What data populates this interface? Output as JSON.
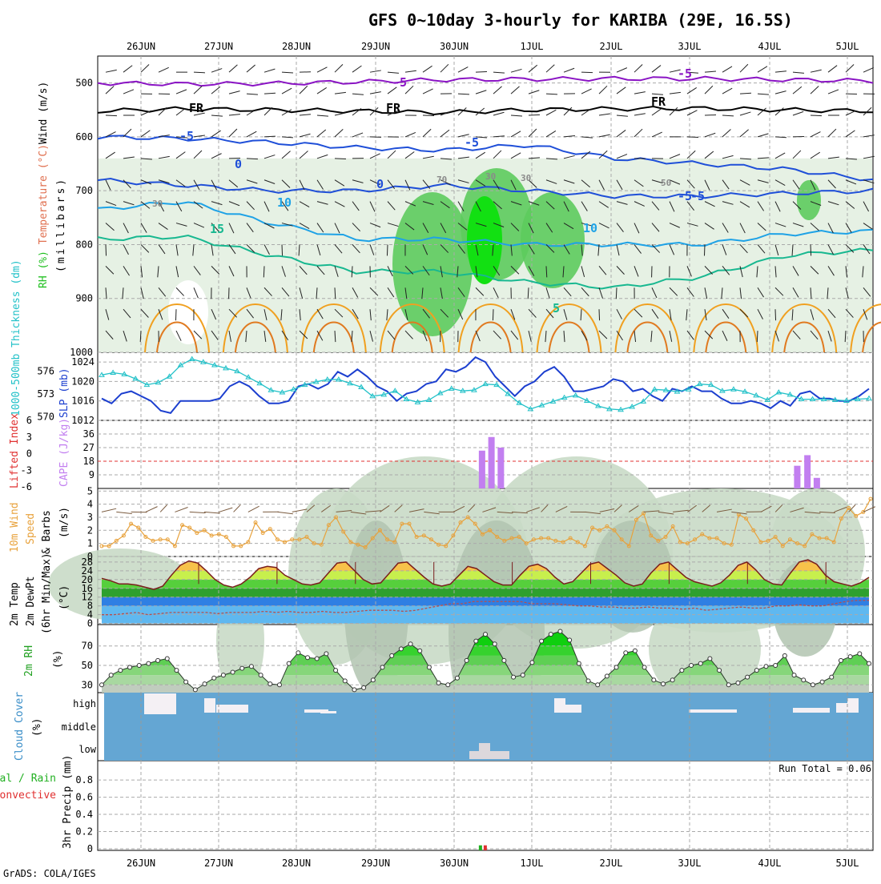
{
  "title": "GFS 0~10day 3-hourly for KARIBA (29E, 16.5S)",
  "credit": "GrADS: COLA/IGES",
  "colors": {
    "rh_light": "#e6f1e4",
    "rh_mid": "#c9dac6",
    "rh_dark": "#b2c4b0",
    "rh_green": "#5dcb5d",
    "rh_bright": "#12e012",
    "temp_purple": "#8a14c4",
    "temp_black": "#000000",
    "temp_blue": "#1f4fd8",
    "temp_lightblue": "#1ea2e6",
    "temp_teal": "#18b890",
    "temp_orange": "#f0a020",
    "temp_darkorange": "#e07a20",
    "slp": "#1c3fcf",
    "thickness": "#22c1c8",
    "cape": "#c27ff0",
    "li_zero": "#e03030",
    "wind_line": "#e8a23c",
    "barb": "#7a5a3e",
    "cloud_bg": "#64a6d3",
    "cloud_fill": "#f4f0f4",
    "precip_total": "#20b020",
    "precip_conv": "#e03030"
  },
  "chart_data": [
    {
      "panel": "upper_air",
      "type": "heatmap",
      "x": [
        "26JUN",
        "27JUN",
        "28JUN",
        "29JUN",
        "30JUN",
        "1JUL",
        "2JUL",
        "3JUL",
        "4JUL",
        "5JUL"
      ],
      "yticks": [
        500,
        600,
        700,
        800,
        900,
        1000
      ],
      "ylabel_wind": "Wind (m/s)",
      "ylabel_temp": "Temperature (°C)",
      "ylabel_rh": "RH (%)",
      "ylabel_units": "(millibars)",
      "contour_labels": [
        "-5",
        "-5",
        "FR",
        "FR",
        "FR",
        "-5",
        "-5",
        "-5",
        "0",
        "0",
        "-5",
        "10",
        "10",
        "15",
        "5",
        "30",
        "30",
        "30",
        "50",
        "70"
      ],
      "contours": [
        {
          "name": "-5 (500mb)",
          "values": [
            500,
            502,
            501,
            498,
            494,
            493,
            492,
            492,
            494,
            496
          ]
        },
        {
          "name": "FR",
          "values": [
            552,
            548,
            550,
            552,
            555,
            550,
            548,
            547,
            550,
            552
          ]
        },
        {
          "name": "-5 (600mb)",
          "values": [
            600,
            603,
            610,
            620,
            625,
            615,
            640,
            650,
            660,
            680
          ]
        },
        {
          "name": "0",
          "values": [
            680,
            690,
            700,
            700,
            690,
            700,
            710,
            710,
            705,
            700
          ]
        },
        {
          "name": "10",
          "values": [
            735,
            720,
            760,
            790,
            790,
            800,
            800,
            800,
            780,
            775
          ]
        },
        {
          "name": "15",
          "values": [
            790,
            785,
            820,
            850,
            850,
            870,
            880,
            860,
            820,
            810
          ]
        }
      ],
      "ylim": [
        1000,
        450
      ]
    },
    {
      "panel": "slp_thickness",
      "type": "line",
      "ylabel_left": "1000-500mb Thickness (dm)",
      "ylabel_right": "SLP (mb)",
      "yticks_left": [
        570,
        573,
        576
      ],
      "yticks_right": [
        1012,
        1016,
        1020,
        1024
      ],
      "series": [
        {
          "name": "SLP",
          "axis": "right",
          "values": [
            1016.5,
            1015.5,
            1017.5,
            1018,
            1017,
            1016,
            1014,
            1013.5,
            1016,
            1016,
            1016,
            1016,
            1016.5,
            1019,
            1020,
            1019,
            1017,
            1015.5,
            1015.5,
            1016,
            1019,
            1019.5,
            1018.5,
            1019.5,
            1022,
            1021,
            1022.5,
            1021,
            1019,
            1018,
            1016,
            1017.5,
            1018,
            1019.5,
            1020,
            1022.5,
            1022,
            1023,
            1025,
            1024,
            1021,
            1019,
            1017,
            1019,
            1020,
            1022,
            1023,
            1021,
            1018,
            1018,
            1018.5,
            1019,
            1020.5,
            1020,
            1018,
            1018.5,
            1017,
            1016,
            1018.5,
            1018,
            1019,
            1018,
            1018,
            1016.5,
            1015.5,
            1015.5,
            1016,
            1015.5,
            1014.5,
            1016,
            1015,
            1017.5,
            1018,
            1016.5,
            1016.5,
            1016,
            1016,
            1017,
            1018.5
          ]
        },
        {
          "name": "Thickness",
          "axis": "left",
          "values": [
            575.5,
            575.8,
            575.6,
            575,
            574.2,
            574.5,
            575.3,
            576.8,
            577.6,
            577.2,
            576.8,
            576.4,
            576,
            575.2,
            574.4,
            573.5,
            573.2,
            573.6,
            574.2,
            574.6,
            574.9,
            574.9,
            574.4,
            573.9,
            572.7,
            572.9,
            573.4,
            572.3,
            571.9,
            572.2,
            573.1,
            573.7,
            573.4,
            573.5,
            574.3,
            574.2,
            573,
            571.8,
            571,
            571.5,
            572,
            572.5,
            572.8,
            572.1,
            571.4,
            571,
            570.9,
            571.3,
            572,
            573.6,
            573.5,
            573.3,
            573.6,
            574.3,
            574.2,
            573.4,
            573.6,
            573.3,
            572.8,
            572.2,
            573.2,
            572.9,
            572.3,
            572.3,
            572.3,
            572.2,
            572.1,
            572.3,
            572.4
          ]
        }
      ]
    },
    {
      "panel": "cape_li",
      "type": "bar",
      "ylabel_left": "Lifted Index",
      "ylabel_right": "CAPE (J/kg)",
      "yticks_left": [
        -6,
        -3,
        0,
        3,
        6
      ],
      "yticks_right": [
        9,
        18,
        27,
        36
      ],
      "series": [
        {
          "name": "CAPE",
          "bars": [
            {
              "x": 4.35,
              "value": 25
            },
            {
              "x": 4.47,
              "value": 34
            },
            {
              "x": 4.59,
              "value": 27
            },
            {
              "x": 8.37,
              "value": 15
            },
            {
              "x": 8.5,
              "value": 22
            },
            {
              "x": 8.62,
              "value": 7
            }
          ]
        }
      ],
      "reference_line": 0
    },
    {
      "panel": "wind10m",
      "type": "line",
      "ylabel": "10m Wind Speed & Barbs (m/s)",
      "yticks": [
        0,
        1,
        2,
        3,
        4,
        5
      ],
      "series": [
        {
          "name": "10m Wind Speed",
          "values": [
            0.8,
            0.8,
            1.2,
            1.6,
            2.5,
            2.2,
            1.5,
            1.2,
            1.3,
            1.3,
            0.8,
            2.4,
            2.2,
            1.8,
            2.0,
            1.6,
            1.7,
            1.5,
            0.8,
            0.8,
            1.1,
            2.6,
            1.8,
            2.1,
            1.3,
            1.1,
            1.3,
            1.3,
            1.5,
            1.0,
            0.9,
            2.4,
            3.0,
            1.9,
            1.1,
            0.9,
            0.7,
            1.4,
            2.0,
            1.3,
            1.1,
            2.5,
            2.5,
            1.5,
            1.6,
            1.3,
            0.9,
            0.8,
            1.6,
            2.6,
            3.0,
            2.5,
            1.7,
            2.0,
            1.5,
            1.2,
            1.4,
            1.5,
            1.0,
            1.3,
            1.4,
            1.4,
            1.2,
            1.1,
            1.4,
            1.1,
            0.8,
            2.2,
            2.0,
            2.3,
            2.0,
            1.3,
            0.8,
            2.8,
            3.3,
            1.6,
            1.2,
            1.5,
            2.3,
            1.1,
            1.0,
            1.3,
            1.7,
            1.4,
            1.4,
            1.0,
            0.9,
            3.2,
            2.9,
            2.0,
            1.1,
            1.2,
            1.5,
            0.8,
            1.3,
            1.0,
            0.8,
            1.7,
            1.4,
            1.4,
            1.1,
            2.9,
            3.7,
            3.1,
            3.4,
            4.4
          ]
        }
      ]
    },
    {
      "panel": "temp2m",
      "type": "area",
      "ylabel": "2m Temp 2m DewPt (6hr Min/Max) (°C)",
      "yticks": [
        0,
        4,
        8,
        12,
        16,
        20,
        24,
        28
      ],
      "series": [
        {
          "name": "2m Temp",
          "values": [
            20.5,
            19.5,
            18,
            18,
            17.5,
            16.5,
            15.5,
            17,
            22,
            26.5,
            28.5,
            27.5,
            24,
            20,
            17.5,
            16.5,
            18,
            21,
            25,
            26,
            25.5,
            22,
            20,
            18,
            17.5,
            18.5,
            23,
            27.5,
            28,
            24,
            20,
            18,
            18.5,
            23,
            27.5,
            28,
            24.5,
            21,
            18,
            17,
            18,
            22,
            26,
            25,
            22,
            19,
            17.5,
            17.5,
            22,
            26,
            27,
            25,
            21,
            18,
            19,
            23,
            27,
            28,
            25,
            22,
            18.5,
            17,
            18,
            23,
            27,
            28,
            24.5,
            21,
            19,
            18,
            17,
            18.5,
            22,
            26.5,
            28,
            24.5,
            20,
            18,
            17.5,
            23,
            28,
            29,
            27,
            22,
            19,
            18,
            17,
            18.5,
            21
          ]
        },
        {
          "name": "2m DewPt",
          "values": [
            4,
            4,
            4.5,
            5,
            4,
            4.5,
            5,
            5,
            5,
            5,
            4.5,
            5,
            5,
            5,
            5.5,
            5,
            5.5,
            5,
            5,
            5.5,
            5,
            5,
            5.5,
            6,
            6,
            6,
            5.5,
            6,
            7,
            8,
            9,
            9,
            10,
            10,
            10,
            10,
            10,
            9,
            9,
            9,
            8.5,
            8,
            8,
            7.5,
            7.5,
            7,
            7,
            7.5,
            7,
            7,
            6.5,
            7,
            6,
            6.5,
            7,
            7.5,
            7,
            7,
            8,
            8,
            8.5,
            8,
            8,
            9,
            10,
            10.5,
            10.5
          ]
        }
      ]
    },
    {
      "panel": "rh2m",
      "type": "area",
      "ylabel": "2m RH (%)",
      "yticks": [
        30,
        50,
        70
      ],
      "series": [
        {
          "name": "2m RH",
          "values": [
            30,
            40,
            45,
            48,
            50,
            52,
            55,
            57,
            45,
            33,
            25,
            31,
            37,
            40,
            43,
            47,
            49,
            40,
            31,
            30,
            52,
            63,
            58,
            57,
            62,
            45,
            34,
            25,
            27,
            35,
            48,
            60,
            67,
            72,
            65,
            48,
            32,
            30,
            37,
            55,
            75,
            82,
            72,
            55,
            38,
            40,
            53,
            75,
            82,
            85,
            76,
            52,
            34,
            30,
            39,
            48,
            63,
            65,
            48,
            35,
            31,
            35,
            45,
            50,
            52,
            57,
            45,
            30,
            32,
            38,
            45,
            49,
            50,
            60,
            40,
            35,
            30,
            33,
            38,
            55,
            59,
            62,
            52
          ]
        }
      ]
    },
    {
      "panel": "cloud",
      "type": "bar",
      "ylabel": "Cloud Cover (%)",
      "levels": [
        "high",
        "middle",
        "low"
      ]
    },
    {
      "panel": "precip",
      "type": "bar",
      "ylabel_left_a": "Total / Rain",
      "ylabel_left_b": "Convective",
      "ylabel": "3hr Precip (mm)",
      "yticks": [
        0,
        0.2,
        0.4,
        0.6,
        0.8
      ],
      "run_total": "Run Total = 0.06",
      "series": [
        {
          "name": "Total/Rain",
          "bars": [
            {
              "x": 4.35,
              "value": 0.04
            }
          ]
        },
        {
          "name": "Convective",
          "bars": [
            {
              "x": 4.35,
              "value": 0.04
            }
          ]
        }
      ]
    }
  ]
}
